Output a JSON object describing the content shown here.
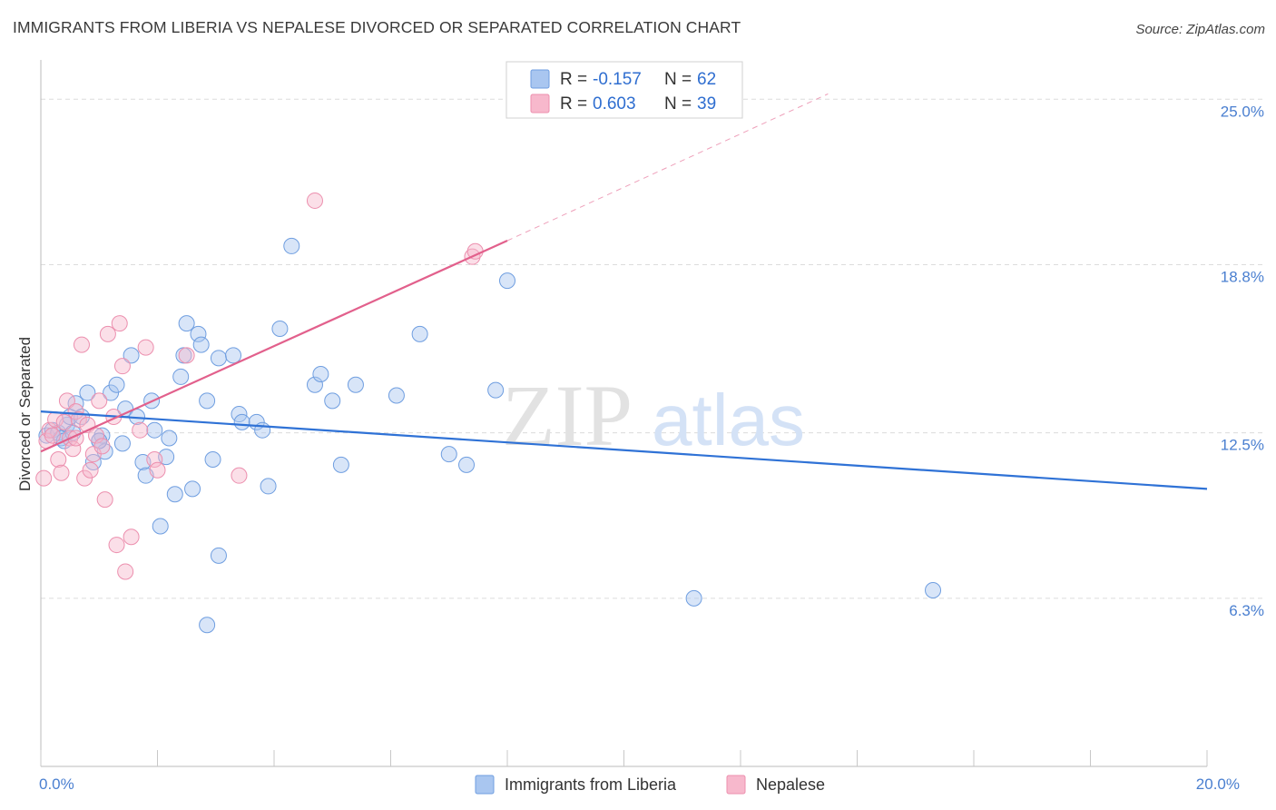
{
  "title": "IMMIGRANTS FROM LIBERIA VS NEPALESE DIVORCED OR SEPARATED CORRELATION CHART",
  "source": "Source: ZipAtlas.com",
  "watermark": {
    "zip": "ZIP",
    "atlas": "atlas"
  },
  "colors": {
    "liberia_fill": "#a9c6f0",
    "liberia_stroke": "#6f9ee0",
    "liberia_line": "#2f72d6",
    "nepal_fill": "#f7b8cc",
    "nepal_stroke": "#ec8fae",
    "nepal_line": "#e2608c",
    "axis_text": "#4a7fd0",
    "grid": "#dcdcdc"
  },
  "legend": {
    "r_label": "R =",
    "n_label": "N =",
    "series": [
      {
        "r": "-0.157",
        "n": "62"
      },
      {
        "r": "0.603",
        "n": "39"
      }
    ]
  },
  "chart_data": {
    "type": "scatter",
    "title": "IMMIGRANTS FROM LIBERIA VS NEPALESE DIVORCED OR SEPARATED CORRELATION CHART",
    "xlabel": "",
    "ylabel": "Divorced or Separated",
    "xlim": [
      0,
      20
    ],
    "ylim": [
      0,
      26.2
    ],
    "x_tick_labels": [
      {
        "value": 0,
        "label": "0.0%"
      },
      {
        "value": 20,
        "label": "20.0%"
      }
    ],
    "x_minor_ticks": [
      0,
      2,
      4,
      6,
      8,
      10,
      12,
      14,
      16,
      18,
      20
    ],
    "y_ticks": [
      {
        "value": 6.3,
        "label": "6.3%"
      },
      {
        "value": 12.5,
        "label": "12.5%"
      },
      {
        "value": 18.8,
        "label": "18.8%"
      },
      {
        "value": 25.0,
        "label": "25.0%"
      }
    ],
    "series": [
      {
        "name": "Immigrants from Liberia",
        "r": -0.157,
        "n": 62,
        "trend": {
          "x": [
            0,
            20
          ],
          "y": [
            13.3,
            10.4
          ]
        },
        "points": [
          [
            0.1,
            12.4
          ],
          [
            0.2,
            12.6
          ],
          [
            0.3,
            12.5
          ],
          [
            0.35,
            12.3
          ],
          [
            0.4,
            12.2
          ],
          [
            0.45,
            12.8
          ],
          [
            0.5,
            13.1
          ],
          [
            0.55,
            12.5
          ],
          [
            0.6,
            13.6
          ],
          [
            0.7,
            13.1
          ],
          [
            0.8,
            14.0
          ],
          [
            0.9,
            11.4
          ],
          [
            1.0,
            12.2
          ],
          [
            1.05,
            12.4
          ],
          [
            1.1,
            11.8
          ],
          [
            1.2,
            14.0
          ],
          [
            1.3,
            14.3
          ],
          [
            1.4,
            12.1
          ],
          [
            1.45,
            13.4
          ],
          [
            1.55,
            15.4
          ],
          [
            1.65,
            13.1
          ],
          [
            1.75,
            11.4
          ],
          [
            1.8,
            10.9
          ],
          [
            1.9,
            13.7
          ],
          [
            1.95,
            12.6
          ],
          [
            2.05,
            9.0
          ],
          [
            2.15,
            11.6
          ],
          [
            2.2,
            12.3
          ],
          [
            2.3,
            10.2
          ],
          [
            2.4,
            14.6
          ],
          [
            2.45,
            15.4
          ],
          [
            2.5,
            16.6
          ],
          [
            2.6,
            10.4
          ],
          [
            2.7,
            16.2
          ],
          [
            2.75,
            15.8
          ],
          [
            2.85,
            13.7
          ],
          [
            2.85,
            5.3
          ],
          [
            2.95,
            11.5
          ],
          [
            3.05,
            7.9
          ],
          [
            3.05,
            15.3
          ],
          [
            3.3,
            15.4
          ],
          [
            3.4,
            13.2
          ],
          [
            3.45,
            12.9
          ],
          [
            3.7,
            12.9
          ],
          [
            3.8,
            12.6
          ],
          [
            3.9,
            10.5
          ],
          [
            4.1,
            16.4
          ],
          [
            4.3,
            19.5
          ],
          [
            4.7,
            14.3
          ],
          [
            4.8,
            14.7
          ],
          [
            5.0,
            13.7
          ],
          [
            5.15,
            11.3
          ],
          [
            5.4,
            14.3
          ],
          [
            6.1,
            13.9
          ],
          [
            6.5,
            16.2
          ],
          [
            7.0,
            11.7
          ],
          [
            7.3,
            11.3
          ],
          [
            7.8,
            14.1
          ],
          [
            8.0,
            18.2
          ],
          [
            11.2,
            6.3
          ],
          [
            15.3,
            6.6
          ],
          [
            1.0,
            12.2
          ]
        ]
      },
      {
        "name": "Nepalese",
        "r": 0.603,
        "n": 39,
        "trend": {
          "x": [
            0,
            8.0
          ],
          "y": [
            11.8,
            19.7
          ]
        },
        "trend_dashed": {
          "x": [
            8.0,
            13.5
          ],
          "y": [
            19.7,
            25.2
          ]
        },
        "points": [
          [
            0.05,
            10.8
          ],
          [
            0.1,
            12.2
          ],
          [
            0.15,
            12.6
          ],
          [
            0.2,
            12.4
          ],
          [
            0.25,
            13.0
          ],
          [
            0.3,
            11.5
          ],
          [
            0.35,
            11.0
          ],
          [
            0.4,
            12.9
          ],
          [
            0.45,
            13.7
          ],
          [
            0.5,
            12.3
          ],
          [
            0.55,
            11.9
          ],
          [
            0.6,
            13.3
          ],
          [
            0.65,
            13.0
          ],
          [
            0.7,
            15.8
          ],
          [
            0.75,
            10.8
          ],
          [
            0.8,
            12.8
          ],
          [
            0.85,
            11.1
          ],
          [
            0.9,
            11.7
          ],
          [
            0.95,
            12.4
          ],
          [
            1.0,
            13.7
          ],
          [
            1.05,
            12.0
          ],
          [
            1.1,
            10.0
          ],
          [
            1.15,
            16.2
          ],
          [
            1.25,
            13.1
          ],
          [
            1.3,
            8.3
          ],
          [
            1.35,
            16.6
          ],
          [
            1.4,
            15.0
          ],
          [
            1.45,
            7.3
          ],
          [
            1.55,
            8.6
          ],
          [
            1.7,
            12.6
          ],
          [
            1.8,
            15.7
          ],
          [
            1.95,
            11.5
          ],
          [
            2.0,
            11.1
          ],
          [
            2.5,
            15.4
          ],
          [
            3.4,
            10.9
          ],
          [
            4.7,
            21.2
          ],
          [
            7.4,
            19.1
          ],
          [
            7.45,
            19.3
          ],
          [
            0.6,
            12.3
          ]
        ]
      }
    ]
  },
  "bottom_legend": [
    {
      "label": "Immigrants from Liberia"
    },
    {
      "label": "Nepalese"
    }
  ]
}
